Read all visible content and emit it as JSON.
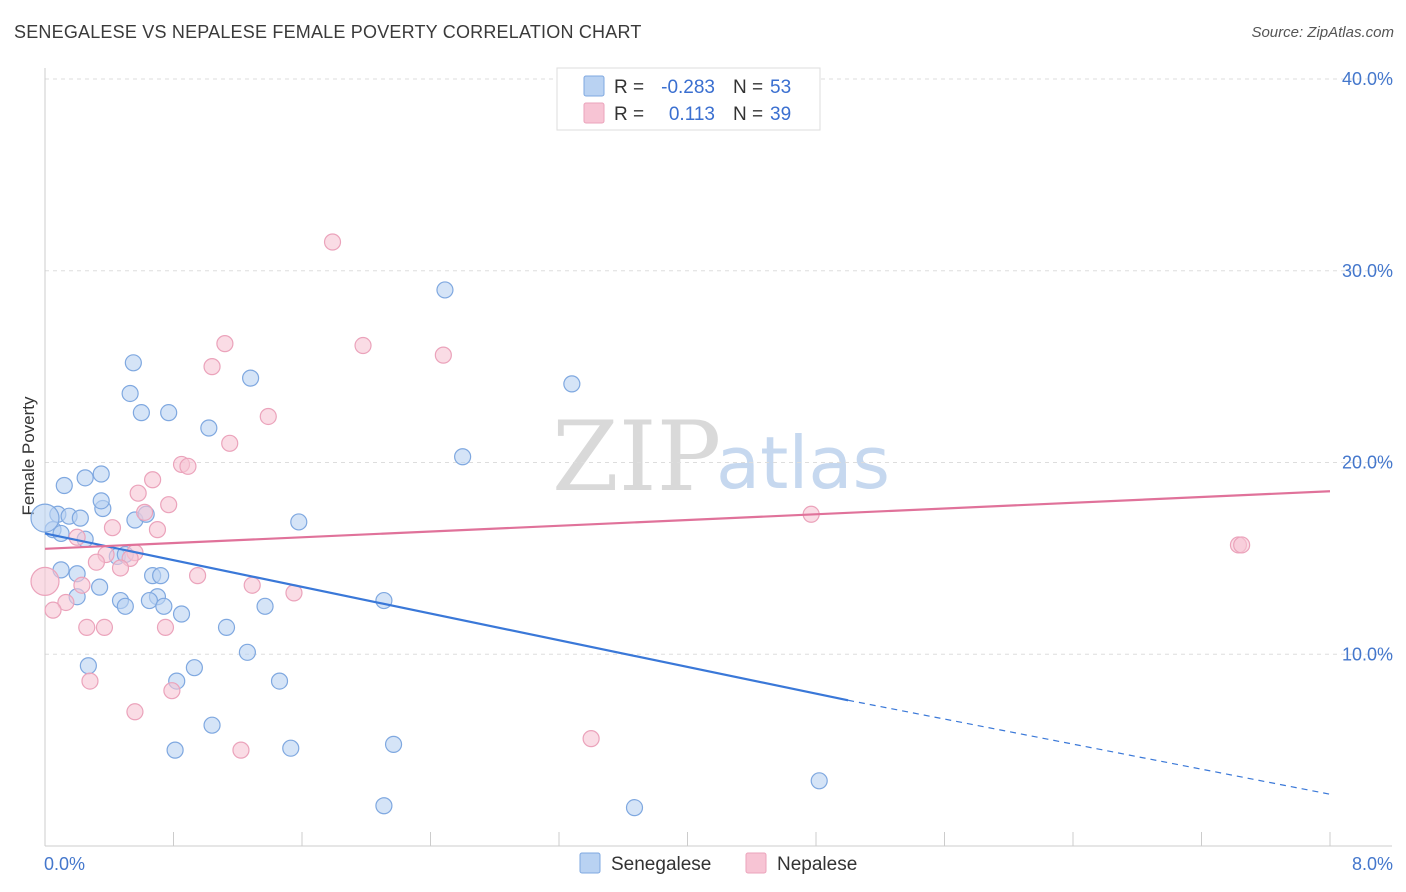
{
  "title": "SENEGALESE VS NEPALESE FEMALE POVERTY CORRELATION CHART",
  "source": "Source: ZipAtlas.com",
  "watermark": {
    "zip": "ZIP",
    "atlas": "atlas"
  },
  "colors": {
    "blue": "#3a78d8",
    "blue_fill": "#b9d2f2",
    "pink": "#e0729a",
    "pink_fill": "#f7c4d4",
    "grid": "#dddddd",
    "axis_label": "#4477cc"
  },
  "legend_top": [
    {
      "series": "Senegalese",
      "r_label": "R =",
      "r_value": "-0.283",
      "n_label": "N =",
      "n_value": "53"
    },
    {
      "series": "Nepalese",
      "r_label": "R =",
      "r_value": "0.113",
      "n_label": "N =",
      "n_value": "39"
    }
  ],
  "chart_data": {
    "type": "scatter",
    "title": "SENEGALESE VS NEPALESE FEMALE POVERTY CORRELATION CHART",
    "xlabel": "",
    "ylabel": "Female Poverty",
    "xlim": [
      0,
      8
    ],
    "ylim": [
      0,
      40
    ],
    "x_tick_labels": [
      "0.0%",
      "8.0%"
    ],
    "y_ticks": [
      10,
      20,
      30,
      40
    ],
    "y_tick_labels": [
      "10.0%",
      "20.0%",
      "30.0%",
      "40.0%"
    ],
    "legend_position": "bottom-center",
    "series": [
      {
        "name": "Senegalese",
        "r": -0.283,
        "n": 53,
        "trend": {
          "x0": 0.0,
          "y0": 16.3,
          "x1": 5.0,
          "y1": 7.6,
          "dash_to_x": 8.0,
          "dash_to_y": 2.7
        },
        "points": [
          [
            0.05,
            16.5
          ],
          [
            0.1,
            16.3
          ],
          [
            0.08,
            17.3
          ],
          [
            0.15,
            17.2
          ],
          [
            0.12,
            18.8
          ],
          [
            0.25,
            19.2
          ],
          [
            0.35,
            19.4
          ],
          [
            0.22,
            17.1
          ],
          [
            0.36,
            17.6
          ],
          [
            0.35,
            18.0
          ],
          [
            0.55,
            25.2
          ],
          [
            0.53,
            23.6
          ],
          [
            0.6,
            22.6
          ],
          [
            0.77,
            22.6
          ],
          [
            1.28,
            24.4
          ],
          [
            1.02,
            21.8
          ],
          [
            2.49,
            29.0
          ],
          [
            3.28,
            24.1
          ],
          [
            2.6,
            20.3
          ],
          [
            0.56,
            17.0
          ],
          [
            0.63,
            17.3
          ],
          [
            1.58,
            16.9
          ],
          [
            0.25,
            16.0
          ],
          [
            0.45,
            15.1
          ],
          [
            0.5,
            15.2
          ],
          [
            0.1,
            14.4
          ],
          [
            0.2,
            14.2
          ],
          [
            0.67,
            14.1
          ],
          [
            0.72,
            14.1
          ],
          [
            0.34,
            13.5
          ],
          [
            0.2,
            13.0
          ],
          [
            0.47,
            12.8
          ],
          [
            0.7,
            13.0
          ],
          [
            0.65,
            12.8
          ],
          [
            0.74,
            12.5
          ],
          [
            0.5,
            12.5
          ],
          [
            0.85,
            12.1
          ],
          [
            1.37,
            12.5
          ],
          [
            2.11,
            12.8
          ],
          [
            1.13,
            11.4
          ],
          [
            1.26,
            10.1
          ],
          [
            0.27,
            9.4
          ],
          [
            0.93,
            9.3
          ],
          [
            0.82,
            8.6
          ],
          [
            1.46,
            8.6
          ],
          [
            1.04,
            6.3
          ],
          [
            0.81,
            5.0
          ],
          [
            1.53,
            5.1
          ],
          [
            2.17,
            5.3
          ],
          [
            4.82,
            3.4
          ],
          [
            2.11,
            2.1
          ],
          [
            3.67,
            2.0
          ],
          [
            0.0,
            17.1
          ]
        ]
      },
      {
        "name": "Nepalese",
        "r": 0.113,
        "n": 39,
        "trend": {
          "x0": 0.0,
          "y0": 15.5,
          "x1": 8.0,
          "y1": 18.5
        },
        "points": [
          [
            1.79,
            31.5
          ],
          [
            1.12,
            26.2
          ],
          [
            1.98,
            26.1
          ],
          [
            2.48,
            25.6
          ],
          [
            1.04,
            25.0
          ],
          [
            1.39,
            22.4
          ],
          [
            1.15,
            21.0
          ],
          [
            0.85,
            19.9
          ],
          [
            0.89,
            19.8
          ],
          [
            0.67,
            19.1
          ],
          [
            0.58,
            18.4
          ],
          [
            0.77,
            17.8
          ],
          [
            0.62,
            17.4
          ],
          [
            4.77,
            17.3
          ],
          [
            0.42,
            16.6
          ],
          [
            0.7,
            16.5
          ],
          [
            0.2,
            16.1
          ],
          [
            7.43,
            15.7
          ],
          [
            7.45,
            15.7
          ],
          [
            0.56,
            15.3
          ],
          [
            0.38,
            15.2
          ],
          [
            0.53,
            15.0
          ],
          [
            0.32,
            14.8
          ],
          [
            0.47,
            14.5
          ],
          [
            0.95,
            14.1
          ],
          [
            0.0,
            13.8
          ],
          [
            0.23,
            13.6
          ],
          [
            1.29,
            13.6
          ],
          [
            1.55,
            13.2
          ],
          [
            0.13,
            12.7
          ],
          [
            0.05,
            12.3
          ],
          [
            0.26,
            11.4
          ],
          [
            0.37,
            11.4
          ],
          [
            0.75,
            11.4
          ],
          [
            0.28,
            8.6
          ],
          [
            0.79,
            8.1
          ],
          [
            0.56,
            7.0
          ],
          [
            1.22,
            5.0
          ],
          [
            3.4,
            5.6
          ]
        ]
      }
    ]
  },
  "legend_bottom": [
    {
      "label": "Senegalese"
    },
    {
      "label": "Nepalese"
    }
  ]
}
